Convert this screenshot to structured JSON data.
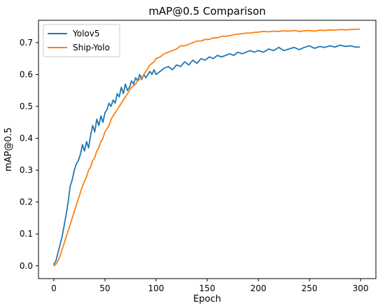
{
  "chart_data": {
    "type": "line",
    "title": "mAP@0.5 Comparison",
    "xlabel": "Epoch",
    "ylabel": "mAP@0.5",
    "xlim": [
      -15,
      315
    ],
    "ylim": [
      -0.04,
      0.77
    ],
    "xticks": [
      0,
      50,
      100,
      150,
      200,
      250,
      300
    ],
    "yticks": [
      0.0,
      0.1,
      0.2,
      0.3,
      0.4,
      0.5,
      0.6,
      0.7
    ],
    "legend_position": "top-left",
    "grid": false,
    "series": [
      {
        "name": "Yolov5",
        "color": "#1f77b4",
        "x": [
          0,
          2,
          4,
          6,
          8,
          10,
          12,
          14,
          16,
          18,
          20,
          22,
          24,
          26,
          28,
          30,
          32,
          34,
          36,
          38,
          40,
          42,
          44,
          46,
          48,
          50,
          52,
          54,
          56,
          58,
          60,
          62,
          64,
          66,
          68,
          70,
          72,
          74,
          76,
          78,
          80,
          82,
          84,
          86,
          88,
          90,
          92,
          94,
          96,
          98,
          100,
          104,
          108,
          112,
          116,
          120,
          124,
          128,
          132,
          136,
          140,
          144,
          148,
          152,
          156,
          160,
          164,
          168,
          172,
          176,
          180,
          184,
          188,
          192,
          196,
          200,
          205,
          210,
          215,
          220,
          225,
          230,
          235,
          240,
          245,
          250,
          255,
          260,
          265,
          270,
          275,
          280,
          285,
          290,
          295,
          299
        ],
        "values": [
          0.005,
          0.015,
          0.04,
          0.065,
          0.09,
          0.125,
          0.16,
          0.2,
          0.25,
          0.27,
          0.3,
          0.32,
          0.33,
          0.35,
          0.38,
          0.36,
          0.39,
          0.37,
          0.41,
          0.44,
          0.42,
          0.46,
          0.44,
          0.47,
          0.45,
          0.48,
          0.49,
          0.51,
          0.5,
          0.52,
          0.51,
          0.54,
          0.53,
          0.56,
          0.54,
          0.57,
          0.55,
          0.56,
          0.58,
          0.57,
          0.59,
          0.58,
          0.6,
          0.585,
          0.6,
          0.59,
          0.6,
          0.61,
          0.6,
          0.615,
          0.6,
          0.61,
          0.62,
          0.625,
          0.615,
          0.63,
          0.625,
          0.64,
          0.63,
          0.645,
          0.635,
          0.65,
          0.645,
          0.655,
          0.65,
          0.66,
          0.655,
          0.66,
          0.665,
          0.66,
          0.67,
          0.665,
          0.67,
          0.675,
          0.67,
          0.675,
          0.67,
          0.68,
          0.675,
          0.685,
          0.675,
          0.68,
          0.685,
          0.678,
          0.685,
          0.69,
          0.682,
          0.688,
          0.685,
          0.69,
          0.686,
          0.692,
          0.688,
          0.69,
          0.686,
          0.686
        ]
      },
      {
        "name": "Ship-Yolo",
        "color": "#ff7f0e",
        "x": [
          0,
          2,
          4,
          6,
          8,
          10,
          12,
          14,
          16,
          18,
          20,
          22,
          24,
          26,
          28,
          30,
          32,
          34,
          36,
          38,
          40,
          42,
          44,
          46,
          48,
          50,
          52,
          54,
          56,
          58,
          60,
          62,
          64,
          66,
          68,
          70,
          72,
          74,
          76,
          78,
          80,
          82,
          84,
          86,
          88,
          90,
          92,
          94,
          96,
          98,
          100,
          104,
          108,
          112,
          116,
          120,
          124,
          128,
          132,
          136,
          140,
          144,
          148,
          152,
          156,
          160,
          164,
          168,
          172,
          176,
          180,
          184,
          188,
          192,
          196,
          200,
          205,
          210,
          215,
          220,
          225,
          230,
          235,
          240,
          245,
          250,
          255,
          260,
          265,
          270,
          275,
          280,
          285,
          290,
          295,
          299
        ],
        "values": [
          0.0,
          0.005,
          0.015,
          0.03,
          0.05,
          0.07,
          0.09,
          0.11,
          0.13,
          0.15,
          0.17,
          0.19,
          0.21,
          0.23,
          0.25,
          0.265,
          0.28,
          0.3,
          0.31,
          0.33,
          0.34,
          0.36,
          0.37,
          0.39,
          0.4,
          0.42,
          0.43,
          0.44,
          0.46,
          0.47,
          0.48,
          0.49,
          0.5,
          0.51,
          0.52,
          0.53,
          0.54,
          0.55,
          0.56,
          0.565,
          0.57,
          0.58,
          0.585,
          0.59,
          0.6,
          0.61,
          0.62,
          0.63,
          0.635,
          0.64,
          0.65,
          0.655,
          0.665,
          0.67,
          0.675,
          0.68,
          0.69,
          0.69,
          0.695,
          0.7,
          0.705,
          0.705,
          0.71,
          0.71,
          0.715,
          0.715,
          0.72,
          0.72,
          0.722,
          0.725,
          0.727,
          0.728,
          0.73,
          0.73,
          0.732,
          0.733,
          0.735,
          0.734,
          0.736,
          0.735,
          0.737,
          0.736,
          0.738,
          0.735,
          0.737,
          0.738,
          0.736,
          0.739,
          0.738,
          0.74,
          0.739,
          0.741,
          0.74,
          0.741,
          0.742,
          0.742
        ]
      }
    ]
  }
}
